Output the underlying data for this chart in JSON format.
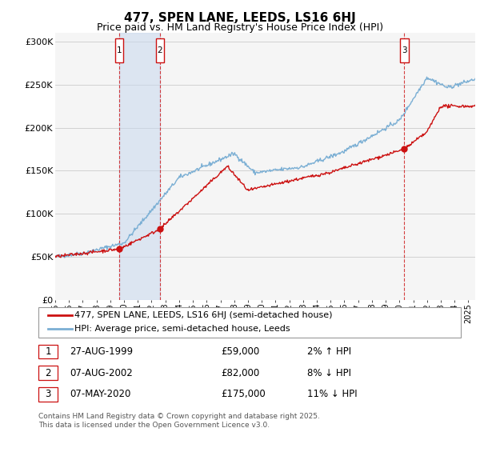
{
  "title1": "477, SPEN LANE, LEEDS, LS16 6HJ",
  "title2": "Price paid vs. HM Land Registry's House Price Index (HPI)",
  "ylabel_ticks": [
    "£0",
    "£50K",
    "£100K",
    "£150K",
    "£200K",
    "£250K",
    "£300K"
  ],
  "ytick_values": [
    0,
    50000,
    100000,
    150000,
    200000,
    250000,
    300000
  ],
  "ylim": [
    0,
    310000
  ],
  "xlim_start": 1995.0,
  "xlim_end": 2025.5,
  "hpi_color": "#7bafd4",
  "price_color": "#cc1111",
  "marker_color": "#cc1111",
  "bg_color": "#f5f5f5",
  "grid_color": "#cccccc",
  "legend_line1": "477, SPEN LANE, LEEDS, LS16 6HJ (semi-detached house)",
  "legend_line2": "HPI: Average price, semi-detached house, Leeds",
  "sale1_label": "1",
  "sale1_date": "27-AUG-1999",
  "sale1_price": "£59,000",
  "sale1_hpi": "2% ↑ HPI",
  "sale1_x": 1999.65,
  "sale1_y": 59000,
  "sale2_label": "2",
  "sale2_date": "07-AUG-2002",
  "sale2_price": "£82,000",
  "sale2_hpi": "8% ↓ HPI",
  "sale2_x": 2002.6,
  "sale2_y": 82000,
  "sale3_label": "3",
  "sale3_date": "07-MAY-2020",
  "sale3_price": "£175,000",
  "sale3_hpi": "11% ↓ HPI",
  "sale3_x": 2020.35,
  "sale3_y": 175000,
  "footnote": "Contains HM Land Registry data © Crown copyright and database right 2025.\nThis data is licensed under the Open Government Licence v3.0."
}
